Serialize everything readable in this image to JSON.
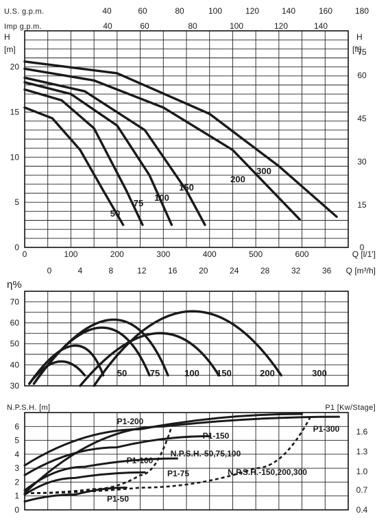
{
  "chart_data": [
    {
      "type": "line",
      "panel": "head",
      "top_axis_1": {
        "label": "U.S. g.p.m.",
        "ticks": [
          "40",
          "60",
          "80",
          "100",
          "120",
          "140",
          "160",
          "180"
        ]
      },
      "top_axis_2": {
        "label": "Imp g.p.m.",
        "ticks": [
          "40",
          "60",
          "80",
          "100",
          "120",
          "140"
        ]
      },
      "y_left": {
        "label": "H",
        "unit": "[m]",
        "ticks": [
          "0",
          "5",
          "10",
          "15",
          "20"
        ],
        "range": [
          0,
          24
        ]
      },
      "y_right": {
        "label": "H",
        "unit": "[ft]",
        "ticks": [
          "0",
          "15",
          "30",
          "45",
          "60",
          "75"
        ]
      },
      "x_bottom_1": {
        "label": "Q [l/1']",
        "ticks": [
          "0",
          "100",
          "200",
          "300",
          "400",
          "500",
          "600"
        ],
        "range": [
          0,
          700
        ]
      },
      "x_bottom_2": {
        "label": "Q [m³/h]",
        "ticks": [
          "0",
          "4",
          "8",
          "12",
          "16",
          "20",
          "24",
          "28",
          "32",
          "36"
        ]
      },
      "series": [
        {
          "name": "50",
          "x": [
            0,
            60,
            120,
            170,
            213
          ],
          "y": [
            15.5,
            14.3,
            10.8,
            6.3,
            2.5
          ]
        },
        {
          "name": "75",
          "x": [
            0,
            80,
            150,
            220,
            255
          ],
          "y": [
            17.5,
            16.3,
            13.2,
            6.3,
            2.5
          ]
        },
        {
          "name": "100",
          "x": [
            0,
            100,
            200,
            270,
            318
          ],
          "y": [
            18.3,
            17.0,
            13.5,
            8.0,
            2.5
          ]
        },
        {
          "name": "150",
          "x": [
            0,
            130,
            260,
            350,
            390
          ],
          "y": [
            18.8,
            17.3,
            13.0,
            6.3,
            2.5
          ]
        },
        {
          "name": "200",
          "x": [
            0,
            150,
            300,
            450,
            595
          ],
          "y": [
            19.8,
            18.5,
            15.5,
            10.8,
            3.1
          ]
        },
        {
          "name": "300",
          "x": [
            0,
            200,
            400,
            550,
            675
          ],
          "y": [
            20.6,
            19.3,
            14.8,
            9.0,
            3.4
          ]
        }
      ]
    },
    {
      "type": "line",
      "panel": "efficiency",
      "y_left": {
        "label": "η%",
        "ticks": [
          "30",
          "40",
          "50",
          "60",
          "70"
        ],
        "range": [
          30,
          75
        ]
      },
      "series": [
        {
          "name": "50",
          "x": [
            10,
            75,
            130
          ],
          "y": [
            31,
            41,
            35
          ]
        },
        {
          "name": "75",
          "x": [
            10,
            120,
            170
          ],
          "y": [
            31,
            49,
            35
          ]
        },
        {
          "name": "100",
          "x": [
            20,
            180,
            270
          ],
          "y": [
            31,
            58,
            35
          ]
        },
        {
          "name": "150",
          "x": [
            20,
            210,
            310
          ],
          "y": [
            31,
            62,
            35
          ]
        },
        {
          "name": "200",
          "x": [
            120,
            300,
            420
          ],
          "y": [
            30,
            55,
            35
          ]
        },
        {
          "name": "300",
          "x": [
            150,
            360,
            555
          ],
          "y": [
            30,
            66,
            35
          ]
        }
      ]
    },
    {
      "type": "line",
      "panel": "npsh_power",
      "y_left": {
        "label": "N.P.S.H. [m]",
        "ticks": [
          "0",
          "1",
          "2",
          "3",
          "4",
          "5",
          "6"
        ],
        "range": [
          0,
          7
        ]
      },
      "y_right": {
        "label": "P1 [Kw/Stage]",
        "ticks": [
          "0.4",
          "0.7",
          "1.0",
          "1.3",
          "1.6"
        ]
      },
      "series": [
        {
          "name": "P1-50",
          "x": [
            0,
            110,
            220
          ],
          "y": [
            0.6,
            1.1,
            1.6
          ]
        },
        {
          "name": "P1-75",
          "x": [
            0,
            110,
            260
          ],
          "y": [
            1.1,
            2.3,
            2.7
          ]
        },
        {
          "name": "P1-100",
          "x": [
            0,
            130,
            330
          ],
          "y": [
            1.4,
            3.1,
            3.7
          ]
        },
        {
          "name": "P1-150",
          "x": [
            0,
            200,
            400
          ],
          "y": [
            2.5,
            4.5,
            5.3
          ]
        },
        {
          "name": "P1-200",
          "x": [
            0,
            250,
            600
          ],
          "y": [
            3.2,
            5.8,
            6.9
          ]
        },
        {
          "name": "P1-300",
          "x": [
            0,
            300,
            680
          ],
          "y": [
            1.2,
            6.0,
            6.7
          ]
        },
        {
          "name": "N.P.S.H.-50,75,100",
          "x": [
            0,
            150,
            250,
            320
          ],
          "y": [
            1.2,
            1.5,
            2.5,
            6.2
          ]
        },
        {
          "name": "N.P.S.H.-150,200,300",
          "x": [
            0,
            250,
            500,
            620
          ],
          "y": [
            1.2,
            1.6,
            3.0,
            6.8
          ]
        }
      ]
    }
  ]
}
